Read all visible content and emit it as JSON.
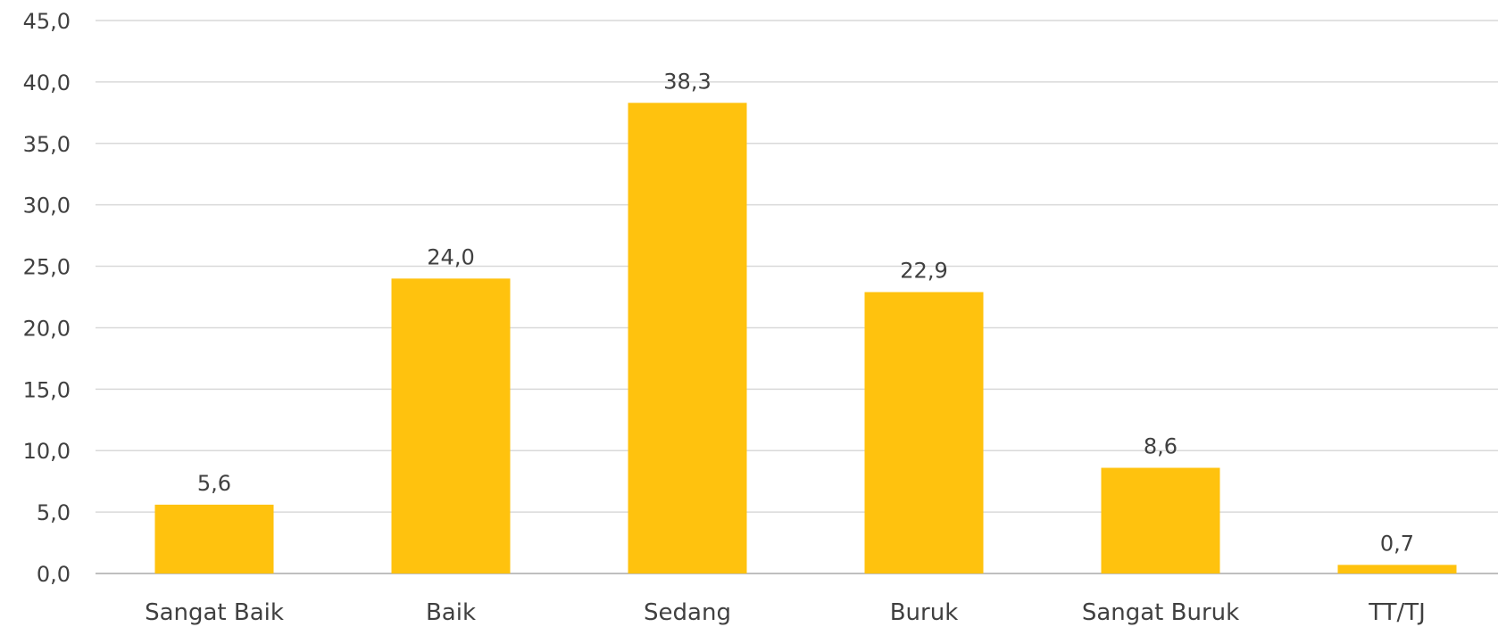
{
  "chart_data": {
    "type": "bar",
    "categories": [
      "Sangat Baik",
      "Baik",
      "Sedang",
      "Buruk",
      "Sangat Buruk",
      "TT/TJ"
    ],
    "values": [
      5.6,
      24.0,
      38.3,
      22.9,
      8.6,
      0.7
    ],
    "value_labels": [
      "5,6",
      "24,0",
      "38,3",
      "22,9",
      "8,6",
      "0,7"
    ],
    "yticks": [
      "0,0",
      "5,0",
      "10,0",
      "15,0",
      "20,0",
      "25,0",
      "30,0",
      "35,0",
      "40,0",
      "45,0"
    ],
    "ylim": [
      0,
      45
    ],
    "grid": true,
    "bar_color": "#FFC20E",
    "title": "",
    "xlabel": "",
    "ylabel": ""
  }
}
